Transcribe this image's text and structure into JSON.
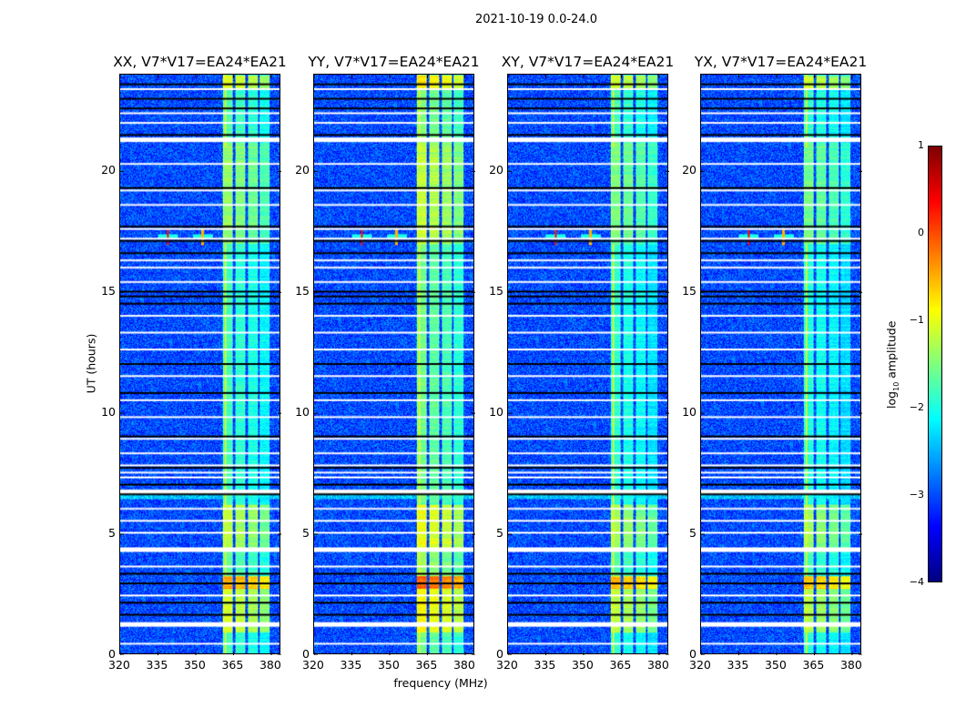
{
  "suptitle": "2021-10-19 0.0-24.0",
  "chart_data": {
    "type": "heatmap",
    "title": "2021-10-19 0.0-24.0",
    "xlabel": "frequency (MHz)",
    "ylabel": "UT (hours)",
    "xlim": [
      320,
      384
    ],
    "ylim": [
      0,
      24
    ],
    "xticks": [
      "320",
      "335",
      "350",
      "365",
      "380"
    ],
    "yticks": [
      "0",
      "5",
      "10",
      "15",
      "20"
    ],
    "panels": [
      {
        "title": "XX, V7*V17=EA24*EA21",
        "gain": 0.0
      },
      {
        "title": "YY, V7*V17=EA24*EA21",
        "gain": 0.25
      },
      {
        "title": "XY, V7*V17=EA24*EA21",
        "gain": -0.1
      },
      {
        "title": "YX, V7*V17=EA24*EA21",
        "gain": -0.15
      }
    ],
    "background_log_amplitude": -3.0,
    "sub_bands_mhz": [
      [
        361,
        365
      ],
      [
        366,
        370
      ],
      [
        371,
        375
      ],
      [
        376,
        380
      ]
    ],
    "band_log_amplitude_by_time": [
      {
        "from": 0.0,
        "to": 0.9,
        "value": -1.8
      },
      {
        "from": 0.9,
        "to": 2.7,
        "value": -1.1
      },
      {
        "from": 2.7,
        "to": 3.2,
        "value": -0.4
      },
      {
        "from": 3.2,
        "to": 4.3,
        "value": -1.6
      },
      {
        "from": 4.3,
        "to": 6.2,
        "value": -1.2
      },
      {
        "from": 6.2,
        "to": 17.0,
        "value": -1.8
      },
      {
        "from": 17.0,
        "to": 21.2,
        "value": -1.4
      },
      {
        "from": 21.2,
        "to": 23.4,
        "value": -1.7
      },
      {
        "from": 23.4,
        "to": 24.0,
        "value": -1.0
      }
    ],
    "flagged_hours_white": [
      0.4,
      1.2,
      2.4,
      3.6,
      4.3,
      5.0,
      5.5,
      6.0,
      6.7,
      7.3,
      7.5,
      7.8,
      8.3,
      8.9,
      9.8,
      10.5,
      11.5,
      12.6,
      13.3,
      14.0,
      15.4,
      16.0,
      16.3,
      17.2,
      17.6,
      18.6,
      19.2,
      20.3,
      21.3,
      22.0,
      22.4,
      23.4
    ],
    "flagged_hours_black": [
      1.6,
      2.1,
      2.9,
      3.3,
      6.6,
      7.0,
      7.7,
      9.0,
      10.8,
      12.0,
      14.5,
      14.8,
      15.0,
      16.6,
      17.1,
      17.7,
      19.3,
      21.5,
      22.6,
      23.0,
      23.6
    ],
    "rfi_spikes": [
      {
        "freq": 339,
        "hour": 17.3,
        "value": 0.3
      },
      {
        "freq": 353,
        "hour": 17.3,
        "value": -0.5
      }
    ],
    "colorbar": {
      "label_prefix": "log",
      "label_sub": "10",
      "label_rest": " amplitude",
      "range": [
        -4,
        1
      ],
      "ticks": [
        "1",
        "0",
        "−1",
        "−2",
        "−3",
        "−4"
      ],
      "colormap": "jet"
    }
  }
}
